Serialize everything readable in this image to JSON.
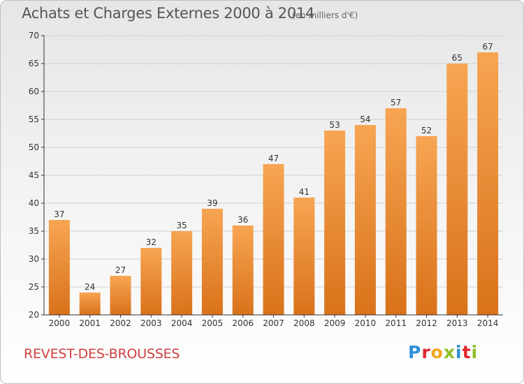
{
  "header": {
    "title": "Achats et Charges Externes 2000 à 2014",
    "subtitle": "(en milliers d'€)"
  },
  "footer": {
    "commune": "REVEST-DES-BROUSSES",
    "logo_letters": [
      "P",
      "r",
      "o",
      "x",
      "i",
      "t",
      "i"
    ],
    "logo_colors": [
      "#2f8fd6",
      "#e2262a",
      "#f2a51e",
      "#8cbf26",
      "#2f8fd6",
      "#e2262a",
      "#8cbf26"
    ]
  },
  "colors": {
    "bar_light": "#f7a553",
    "bar_dark": "#d9721a",
    "axis": "#333333",
    "grid": "#d0d0d0",
    "label": "#333333"
  },
  "chart_data": {
    "type": "bar",
    "title": "Achats et Charges Externes 2000 à 2014",
    "subtitle": "(en milliers d'€)",
    "categories": [
      "2000",
      "2001",
      "2002",
      "2003",
      "2004",
      "2005",
      "2006",
      "2007",
      "2008",
      "2009",
      "2010",
      "2011",
      "2012",
      "2013",
      "2014"
    ],
    "values": [
      37,
      24,
      27,
      32,
      35,
      39,
      36,
      47,
      41,
      53,
      54,
      57,
      52,
      65,
      67
    ],
    "ylim": [
      20,
      70
    ],
    "yticks": [
      20,
      25,
      30,
      35,
      40,
      45,
      50,
      55,
      60,
      65,
      70
    ],
    "grid": true,
    "data_labels": true
  }
}
